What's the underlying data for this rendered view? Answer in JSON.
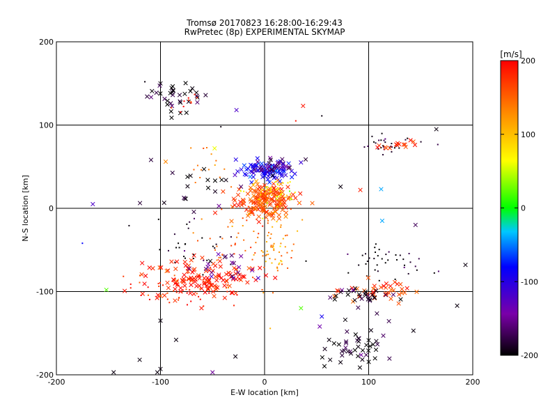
{
  "chart_data": {
    "type": "scatter",
    "title": "Tromsø 20170823 16:28:00-16:29:43",
    "subtitle": "RwPretec (8p) EXPERIMENTAL SKYMAP",
    "xlabel": "E-W location [km]",
    "ylabel": "N-S location [km]",
    "xlim": [
      -200,
      200
    ],
    "ylim": [
      -200,
      200
    ],
    "x_ticks": [
      "-200",
      "-100",
      "0",
      "100",
      "200"
    ],
    "y_ticks": [
      "-200",
      "-100",
      "0",
      "100",
      "200"
    ],
    "grid": "on",
    "colorbar": {
      "label": "[m/s]",
      "range": [
        -200,
        200
      ],
      "ticks": [
        "200",
        "100",
        "0",
        "-100",
        "-200"
      ],
      "palette": [
        "#000000",
        "#7a00a8",
        "#0000ff",
        "#00c8ff",
        "#00ff00",
        "#ffff00",
        "#ff8c00",
        "#ff0000"
      ]
    },
    "markers": [
      "cross (x)",
      "dot"
    ],
    "clusters": [
      {
        "x": -85,
        "y": 135,
        "spread": [
          14,
          10
        ],
        "velocity": -190,
        "count": 35,
        "marker": "x"
      },
      {
        "x": -80,
        "y": 128,
        "spread": [
          10,
          6
        ],
        "velocity": 185,
        "count": 10,
        "marker": "dot"
      },
      {
        "x": 2,
        "y": 45,
        "spread": [
          14,
          6
        ],
        "velocity": -90,
        "count": 90,
        "marker": "x"
      },
      {
        "x": 15,
        "y": 50,
        "spread": [
          12,
          5
        ],
        "velocity": -160,
        "count": 30,
        "marker": "x"
      },
      {
        "x": 0,
        "y": 10,
        "spread": [
          14,
          10
        ],
        "velocity": 160,
        "count": 180,
        "marker": "x"
      },
      {
        "x": 5,
        "y": 20,
        "spread": [
          12,
          8
        ],
        "velocity": 70,
        "count": 50,
        "marker": "dot"
      },
      {
        "x": -60,
        "y": -85,
        "spread": [
          30,
          12
        ],
        "velocity": 185,
        "count": 130,
        "marker": "x"
      },
      {
        "x": -80,
        "y": -95,
        "spread": [
          25,
          10
        ],
        "velocity": 175,
        "count": 60,
        "marker": "dot"
      },
      {
        "x": -20,
        "y": -40,
        "spread": [
          25,
          25
        ],
        "velocity": 150,
        "count": 60,
        "marker": "dot"
      },
      {
        "x": 10,
        "y": -50,
        "spread": [
          10,
          30
        ],
        "velocity": 120,
        "count": 50,
        "marker": "dot"
      },
      {
        "x": -30,
        "y": -70,
        "spread": [
          15,
          10
        ],
        "velocity": -150,
        "count": 20,
        "marker": "x"
      },
      {
        "x": 115,
        "y": -65,
        "spread": [
          20,
          10
        ],
        "velocity": -195,
        "count": 40,
        "marker": "dot"
      },
      {
        "x": 110,
        "y": -100,
        "spread": [
          18,
          6
        ],
        "velocity": 165,
        "count": 40,
        "marker": "x"
      },
      {
        "x": 90,
        "y": -105,
        "spread": [
          15,
          6
        ],
        "velocity": -190,
        "count": 30,
        "marker": "x"
      },
      {
        "x": 95,
        "y": -170,
        "spread": [
          15,
          15
        ],
        "velocity": -195,
        "count": 45,
        "marker": "x"
      },
      {
        "x": 120,
        "y": 75,
        "spread": [
          18,
          5
        ],
        "velocity": -190,
        "count": 30,
        "marker": "dot"
      },
      {
        "x": 128,
        "y": 76,
        "spread": [
          8,
          3
        ],
        "velocity": 180,
        "count": 15,
        "marker": "x"
      },
      {
        "x": -75,
        "y": 25,
        "spread": [
          20,
          15
        ],
        "velocity": -195,
        "count": 20,
        "marker": "x"
      },
      {
        "x": -70,
        "y": -40,
        "spread": [
          20,
          15
        ],
        "velocity": -195,
        "count": 30,
        "marker": "dot"
      },
      {
        "x": -50,
        "y": 50,
        "spread": [
          15,
          15
        ],
        "velocity": 140,
        "count": 15,
        "marker": "dot"
      }
    ],
    "outliers": [
      {
        "x": 165,
        "y": 95,
        "v": -195,
        "m": "x"
      },
      {
        "x": 112,
        "y": 23,
        "v": -40,
        "m": "x"
      },
      {
        "x": 113,
        "y": -15,
        "v": -40,
        "m": "x"
      },
      {
        "x": 145,
        "y": -20,
        "v": -170,
        "m": "x"
      },
      {
        "x": 193,
        "y": -68,
        "v": -195,
        "m": "x"
      },
      {
        "x": 185,
        "y": -117,
        "v": -195,
        "m": "x"
      },
      {
        "x": 143,
        "y": -147,
        "v": -195,
        "m": "x"
      },
      {
        "x": -165,
        "y": 5,
        "v": -120,
        "m": "x"
      },
      {
        "x": -152,
        "y": -98,
        "v": 20,
        "m": "x"
      },
      {
        "x": -175,
        "y": -42,
        "v": -80,
        "m": "dot"
      },
      {
        "x": -145,
        "y": -197,
        "v": -195,
        "m": "x"
      },
      {
        "x": -120,
        "y": -182,
        "v": -195,
        "m": "x"
      },
      {
        "x": -100,
        "y": -193,
        "v": -195,
        "m": "x"
      },
      {
        "x": -103,
        "y": -197,
        "v": -195,
        "m": "x"
      },
      {
        "x": 37,
        "y": 123,
        "v": 190,
        "m": "x"
      },
      {
        "x": -27,
        "y": 118,
        "v": -120,
        "m": "x"
      },
      {
        "x": -100,
        "y": 150,
        "v": -195,
        "m": "x"
      },
      {
        "x": -115,
        "y": 152,
        "v": -195,
        "m": "dot"
      },
      {
        "x": 55,
        "y": 111,
        "v": -195,
        "m": "dot"
      },
      {
        "x": 73,
        "y": 26,
        "v": -195,
        "m": "x"
      },
      {
        "x": 92,
        "y": 22,
        "v": 185,
        "m": "x"
      },
      {
        "x": 35,
        "y": -120,
        "v": 20,
        "m": "x"
      },
      {
        "x": 55,
        "y": -130,
        "v": -90,
        "m": "x"
      },
      {
        "x": 53,
        "y": -142,
        "v": -140,
        "m": "x"
      },
      {
        "x": 62,
        "y": -158,
        "v": -195,
        "m": "x"
      },
      {
        "x": 73,
        "y": -185,
        "v": -195,
        "m": "x"
      },
      {
        "x": 63,
        "y": -182,
        "v": -195,
        "m": "x"
      },
      {
        "x": -50,
        "y": -197,
        "v": -150,
        "m": "x"
      },
      {
        "x": -28,
        "y": -178,
        "v": -195,
        "m": "x"
      },
      {
        "x": -100,
        "y": -135,
        "v": -195,
        "m": "x"
      },
      {
        "x": -85,
        "y": -158,
        "v": -195,
        "m": "x"
      },
      {
        "x": -48,
        "y": 72,
        "v": 60,
        "m": "x"
      },
      {
        "x": -95,
        "y": 56,
        "v": 130,
        "m": "x"
      },
      {
        "x": -42,
        "y": 98,
        "v": -195,
        "m": "dot"
      },
      {
        "x": 30,
        "y": 105,
        "v": 190,
        "m": "dot"
      }
    ]
  }
}
